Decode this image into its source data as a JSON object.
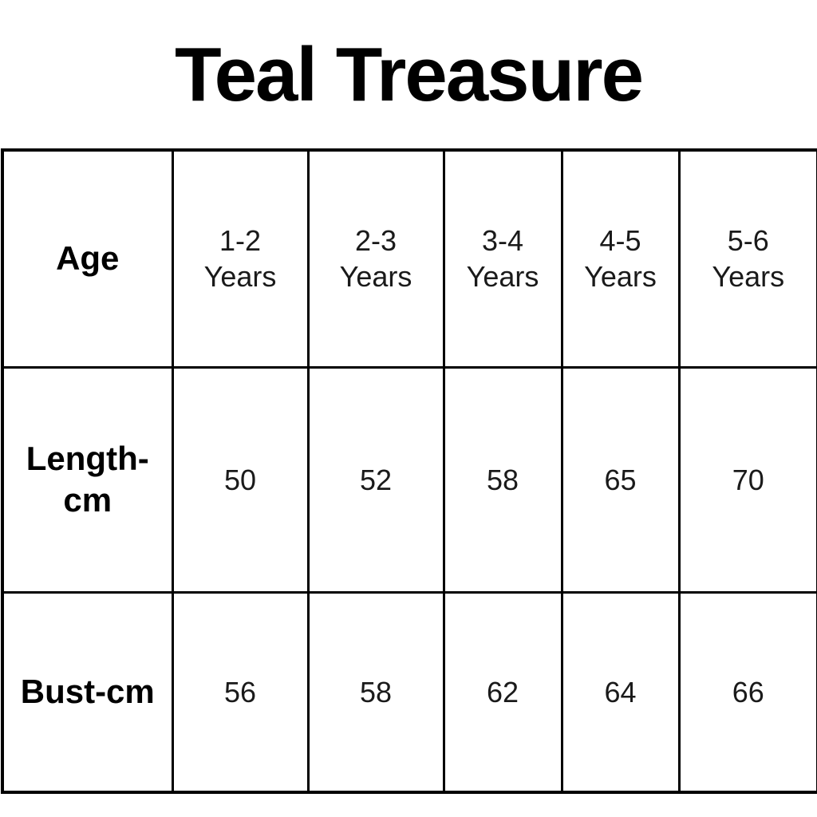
{
  "page": {
    "background_color": "#ffffff",
    "text_color": "#000000",
    "border_color": "#000000"
  },
  "title": "Teal Treasure",
  "table": {
    "rows": [
      {
        "header": "Age",
        "cells": [
          "1-2\nYears",
          "2-3\nYears",
          "3-4\nYears",
          "4-5\nYears",
          "5-6\nYears"
        ]
      },
      {
        "header": "Length-\ncm",
        "cells": [
          "50",
          "52",
          "58",
          "65",
          "70"
        ]
      },
      {
        "header": "Bust-cm",
        "cells": [
          "56",
          "58",
          "62",
          "64",
          "66"
        ]
      }
    ]
  },
  "chart_data": {
    "type": "table",
    "title": "Teal Treasure",
    "columns": [
      "Age",
      "1-2 Years",
      "2-3 Years",
      "3-4 Years",
      "4-5 Years",
      "5-6 Years"
    ],
    "rows": [
      [
        "Length-cm",
        50,
        52,
        58,
        65,
        70
      ],
      [
        "Bust-cm",
        56,
        58,
        62,
        64,
        66
      ]
    ],
    "series": [
      {
        "name": "Length-cm",
        "values": [
          50,
          52,
          58,
          65,
          70
        ]
      },
      {
        "name": "Bust-cm",
        "values": [
          56,
          58,
          62,
          64,
          66
        ]
      }
    ],
    "categories": [
      "1-2 Years",
      "2-3 Years",
      "3-4 Years",
      "4-5 Years",
      "5-6 Years"
    ],
    "units": "cm",
    "notes": "Children's clothing size chart: 3 rows x 6 columns, black grid borders on white background"
  }
}
